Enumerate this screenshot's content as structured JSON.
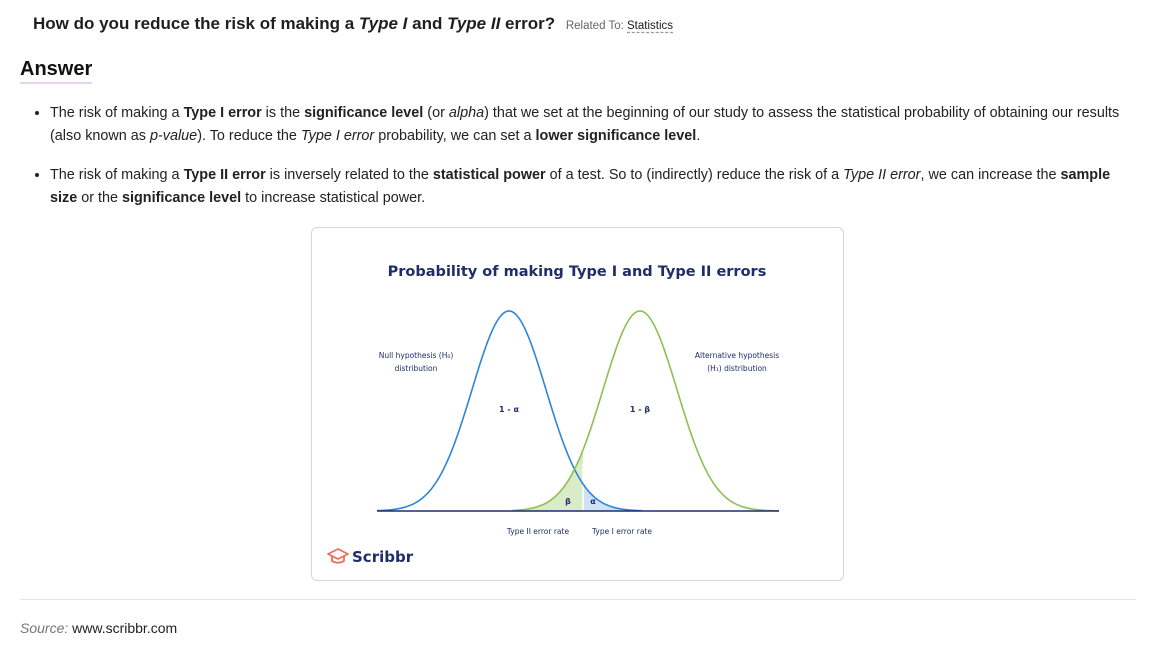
{
  "question": {
    "prefix": "How do you reduce the risk of making a ",
    "term1": "Type I",
    "middle": " and ",
    "term2": "Type II",
    "suffix": " error?",
    "related_label": "Related To:",
    "related_link": "Statistics"
  },
  "answer": {
    "heading": "Answer",
    "bullets": [
      {
        "segments": [
          {
            "text": "The risk of making a ",
            "style": "normal"
          },
          {
            "text": "Type I error",
            "style": "bold"
          },
          {
            "text": " is the ",
            "style": "normal"
          },
          {
            "text": "significance level",
            "style": "bold"
          },
          {
            "text": " (or ",
            "style": "normal"
          },
          {
            "text": "alpha",
            "style": "italic"
          },
          {
            "text": ") that we set at the beginning of our study to assess the statistical probability of obtaining our results (also known as ",
            "style": "normal"
          },
          {
            "text": "p-value",
            "style": "italic"
          },
          {
            "text": "). To reduce the ",
            "style": "normal"
          },
          {
            "text": "Type I error",
            "style": "italic"
          },
          {
            "text": " probability, we can set a ",
            "style": "normal"
          },
          {
            "text": "lower significance level",
            "style": "bold"
          },
          {
            "text": ".",
            "style": "normal"
          }
        ]
      },
      {
        "segments": [
          {
            "text": "The risk of making a ",
            "style": "normal"
          },
          {
            "text": "Type II error",
            "style": "bold"
          },
          {
            "text": " is inversely related to the ",
            "style": "normal"
          },
          {
            "text": "statistical power",
            "style": "bold"
          },
          {
            "text": " of a test. So to (indirectly) reduce the risk of a ",
            "style": "normal"
          },
          {
            "text": "Type II error",
            "style": "italic"
          },
          {
            "text": ", we can increase the ",
            "style": "normal"
          },
          {
            "text": "sample size",
            "style": "bold"
          },
          {
            "text": " or the ",
            "style": "normal"
          },
          {
            "text": "significance level",
            "style": "bold"
          },
          {
            "text": " to increase statistical power.",
            "style": "normal"
          }
        ]
      }
    ]
  },
  "figure": {
    "title": "Probability of making Type I and Type II errors",
    "null_label_line1": "Null hypothesis (H₀)",
    "null_label_line2": "distribution",
    "alt_label_line1": "Alternative hypothesis",
    "alt_label_line2": "(H₁) distribution",
    "null_area_label": "1 - α",
    "alt_area_label": "1 - β",
    "beta_label": "β",
    "alpha_label": "α",
    "type2_rate_label": "Type II error rate",
    "type1_rate_label": "Type I error rate",
    "logo_text": "Scribbr",
    "colors": {
      "title": "#1f2d6b",
      "null_curve": "#2f86d9",
      "alt_curve": "#8cc152",
      "beta_fill": "#d9ebc7",
      "alpha_fill": "#cfe2f5",
      "baseline": "#1f2d6b",
      "logo": "#f26b5b"
    }
  },
  "footer": {
    "source_label": "Source:",
    "source_value": "www.scribbr.com"
  }
}
